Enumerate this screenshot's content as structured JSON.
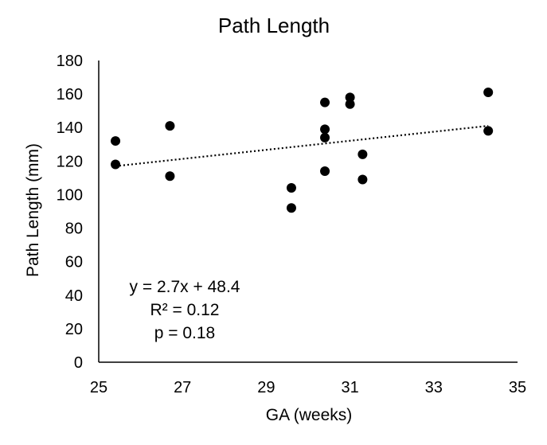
{
  "chart_data": {
    "type": "scatter",
    "title": "Path Length",
    "xlabel": "GA (weeks)",
    "ylabel": "Path Length (mm)",
    "xlim": [
      25,
      35
    ],
    "ylim": [
      0,
      180
    ],
    "x_ticks": [
      25,
      27,
      29,
      31,
      33,
      35
    ],
    "y_ticks": [
      0,
      20,
      40,
      60,
      80,
      100,
      120,
      140,
      160,
      180
    ],
    "grid": false,
    "legend": "none",
    "series": [
      {
        "name": "Path Length",
        "color": "#000000",
        "points": [
          {
            "x": 25.4,
            "y": 132
          },
          {
            "x": 25.4,
            "y": 118
          },
          {
            "x": 26.7,
            "y": 141
          },
          {
            "x": 26.7,
            "y": 111
          },
          {
            "x": 29.6,
            "y": 104
          },
          {
            "x": 29.6,
            "y": 92
          },
          {
            "x": 30.4,
            "y": 155
          },
          {
            "x": 30.4,
            "y": 139
          },
          {
            "x": 30.4,
            "y": 134
          },
          {
            "x": 30.4,
            "y": 114
          },
          {
            "x": 31.0,
            "y": 158
          },
          {
            "x": 31.0,
            "y": 154
          },
          {
            "x": 31.3,
            "y": 124
          },
          {
            "x": 31.3,
            "y": 109
          },
          {
            "x": 34.3,
            "y": 161
          },
          {
            "x": 34.3,
            "y": 138
          }
        ]
      }
    ],
    "trendline": {
      "type": "linear",
      "style": "dotted",
      "slope": 2.7,
      "intercept": 48.4,
      "x_range": [
        25.4,
        34.3
      ]
    },
    "annotations": {
      "equation": "y = 2.7x + 48.4",
      "r_squared": "R² = 0.12",
      "p_value": "p = 0.18"
    }
  }
}
